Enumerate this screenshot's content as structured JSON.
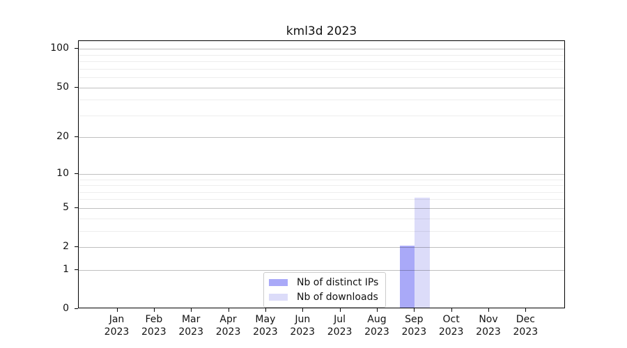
{
  "chart_data": {
    "type": "bar",
    "title": "kml3d 2023",
    "x_tick_months": [
      "Jan",
      "Feb",
      "Mar",
      "Apr",
      "May",
      "Jun",
      "Jul",
      "Aug",
      "Sep",
      "Oct",
      "Nov",
      "Dec"
    ],
    "x_tick_year": "2023",
    "series": [
      {
        "name": "Nb of distinct IPs",
        "color": "#a9a9f8",
        "values": [
          0,
          0,
          0,
          0,
          0,
          0,
          0,
          0,
          2,
          0,
          0,
          0
        ]
      },
      {
        "name": "Nb of downloads",
        "color": "#dcdcf9",
        "values": [
          0,
          0,
          0,
          0,
          0,
          0,
          0,
          0,
          6,
          0,
          0,
          0
        ]
      }
    ],
    "yscale": "log1p",
    "ylim": [
      0,
      115
    ],
    "yticks": [
      0,
      1,
      2,
      5,
      10,
      20,
      50,
      100
    ],
    "yticks_minor": [
      3,
      4,
      6,
      7,
      8,
      9,
      30,
      40,
      60,
      70,
      80,
      90
    ],
    "grid": true,
    "legend_position": "lower center"
  },
  "colors": {
    "grid_major": "rgba(0,0,0,0.25)",
    "grid_minor": "rgba(0,0,0,0.07)",
    "axis": "#000000",
    "text": "#111111",
    "legend_border": "#cccccc"
  }
}
